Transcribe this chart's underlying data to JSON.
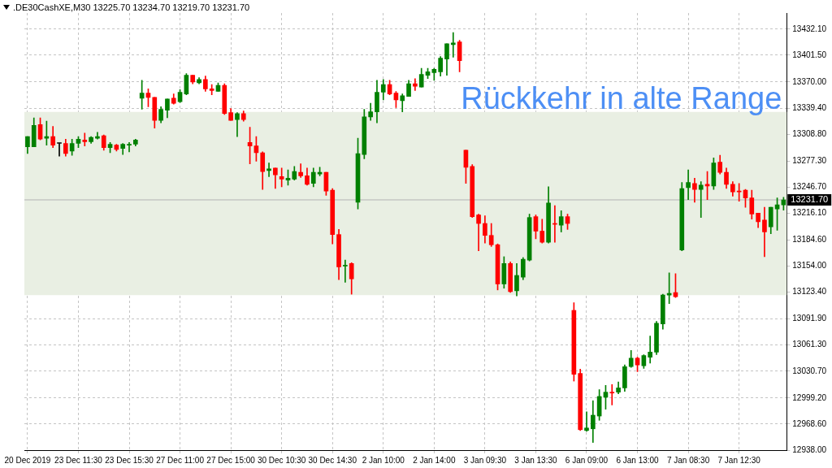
{
  "chart_data": {
    "type": "candlestick",
    "title": ".DE30CashXE,M30  13225.70 13234.70 13219.70 13231.70",
    "categories": [
      "20 Dec 2019",
      null,
      null,
      null,
      null,
      null,
      null,
      null,
      "23 Dec 11:30",
      null,
      null,
      null,
      null,
      null,
      null,
      null,
      "23 Dec 15:30",
      null,
      null,
      null,
      null,
      null,
      null,
      null,
      "27 Dec 11:00",
      null,
      null,
      null,
      null,
      null,
      null,
      null,
      "27 Dec 15:00",
      null,
      null,
      null,
      null,
      null,
      null,
      null,
      "30 Dec 10:30",
      null,
      null,
      null,
      null,
      null,
      null,
      null,
      "30 Dec 14:30",
      null,
      null,
      null,
      null,
      null,
      null,
      null,
      "2 Jan 10:00",
      null,
      null,
      null,
      null,
      null,
      null,
      null,
      "2 Jan 14:00",
      null,
      null,
      null,
      null,
      null,
      null,
      null,
      "3 Jan 09:30",
      null,
      null,
      null,
      null,
      null,
      null,
      null,
      "3 Jan 13:30",
      null,
      null,
      null,
      null,
      null,
      null,
      null,
      "6 Jan 09:00",
      null,
      null,
      null,
      null,
      null,
      null,
      null,
      "6 Jan 13:00",
      null,
      null,
      null,
      null,
      null,
      null,
      null,
      "7 Jan 08:30",
      null,
      null,
      null,
      null,
      null,
      null,
      null,
      "7 Jan 12:30",
      null,
      null,
      null,
      null,
      null,
      null,
      null
    ],
    "ohlc": [
      [
        13294,
        13306,
        13286,
        13306
      ],
      [
        13294,
        13328,
        13294,
        13319
      ],
      [
        13320,
        13328,
        13302,
        13303
      ],
      [
        13304,
        13324,
        13296,
        13306
      ],
      [
        13306,
        13318,
        13293,
        13296
      ],
      [
        13298,
        13298,
        13283,
        13298
      ],
      [
        13298,
        13303,
        13283,
        13286
      ],
      [
        13289,
        13303,
        13284,
        13298
      ],
      [
        13298,
        13306,
        13293,
        13303
      ],
      [
        13302,
        13310,
        13295,
        13300
      ],
      [
        13300,
        13306,
        13298,
        13305
      ],
      [
        13304,
        13311,
        13303,
        13306
      ],
      [
        13307,
        13308,
        13290,
        13293
      ],
      [
        13293,
        13299,
        13287,
        13297
      ],
      [
        13296,
        13297,
        13289,
        13291
      ],
      [
        13292,
        13298,
        13285,
        13297
      ],
      [
        13296,
        13299,
        13288,
        13297
      ],
      [
        13297,
        13303,
        13295,
        13302
      ],
      [
        13351,
        13372,
        13338,
        13357
      ],
      [
        13357,
        13362,
        13341,
        13352
      ],
      [
        13352,
        13352,
        13316,
        13325
      ],
      [
        13325,
        13341,
        13322,
        13338
      ],
      [
        13337,
        13350,
        13328,
        13350
      ],
      [
        13351,
        13356,
        13344,
        13345
      ],
      [
        13347,
        13361,
        13346,
        13358
      ],
      [
        13356,
        13380,
        13355,
        13378
      ],
      [
        13378,
        13378,
        13368,
        13370
      ],
      [
        13369,
        13375,
        13368,
        13373
      ],
      [
        13373,
        13377,
        13359,
        13362
      ],
      [
        13362,
        13367,
        13355,
        13360
      ],
      [
        13359,
        13369,
        13359,
        13366
      ],
      [
        13366,
        13368,
        13332,
        13333
      ],
      [
        13334,
        13339,
        13325,
        13325
      ],
      [
        13326,
        13334,
        13306,
        13333
      ],
      [
        13333,
        13336,
        13324,
        13326
      ],
      [
        13299,
        13317,
        13274,
        13295
      ],
      [
        13295,
        13306,
        13277,
        13287
      ],
      [
        13287,
        13288,
        13244,
        13265
      ],
      [
        13266,
        13275,
        13259,
        13268
      ],
      [
        13269,
        13269,
        13245,
        13261
      ],
      [
        13259,
        13269,
        13247,
        13256
      ],
      [
        13255,
        13267,
        13249,
        13257
      ],
      [
        13256,
        13271,
        13255,
        13265
      ],
      [
        13264,
        13274,
        13258,
        13260
      ],
      [
        13260,
        13269,
        13249,
        13250
      ],
      [
        13251,
        13269,
        13247,
        13264
      ],
      [
        13262,
        13270,
        13260,
        13264
      ],
      [
        13264,
        13264,
        13237,
        13242
      ],
      [
        13243,
        13245,
        13180,
        13191
      ],
      [
        13191,
        13197,
        13138,
        13153
      ],
      [
        13154,
        13161,
        13135,
        13155
      ],
      [
        13157,
        13158,
        13121,
        13139
      ],
      [
        13229,
        13304,
        13221,
        13286
      ],
      [
        13285,
        13338,
        13280,
        13329
      ],
      [
        13329,
        13345,
        13325,
        13335
      ],
      [
        13335,
        13372,
        13322,
        13358
      ],
      [
        13358,
        13373,
        13349,
        13367
      ],
      [
        13367,
        13372,
        13355,
        13356
      ],
      [
        13357,
        13359,
        13340,
        13349
      ],
      [
        13348,
        13356,
        13335,
        13354
      ],
      [
        13353,
        13372,
        13353,
        13368
      ],
      [
        13368,
        13374,
        13360,
        13365
      ],
      [
        13364,
        13386,
        13364,
        13379
      ],
      [
        13378,
        13386,
        13374,
        13382
      ],
      [
        13381,
        13386,
        13372,
        13385
      ],
      [
        13382,
        13400,
        13377,
        13398
      ],
      [
        13397,
        13415,
        13378,
        13415
      ],
      [
        13414,
        13428,
        13399,
        13416
      ],
      [
        13417,
        13419,
        13382,
        13395
      ],
      [
        13290,
        13290,
        13251,
        13270
      ],
      [
        13271,
        13273,
        13211,
        13212
      ],
      [
        13214,
        13215,
        13172,
        13204
      ],
      [
        13204,
        13213,
        13181,
        13190
      ],
      [
        13190,
        13204,
        13177,
        13179
      ],
      [
        13179,
        13180,
        13126,
        13133
      ],
      [
        13133,
        13165,
        13128,
        13157
      ],
      [
        13157,
        13159,
        13123,
        13124
      ],
      [
        13125,
        13157,
        13119,
        13143
      ],
      [
        13141,
        13164,
        13138,
        13162
      ],
      [
        13161,
        13215,
        13160,
        13211
      ],
      [
        13212,
        13214,
        13186,
        13195
      ],
      [
        13195,
        13209,
        13181,
        13182
      ],
      [
        13182,
        13247,
        13181,
        13228
      ],
      [
        13204,
        13225,
        13182,
        13203
      ],
      [
        13202,
        13219,
        13194,
        13212
      ],
      [
        13212,
        13215,
        13197,
        13204
      ],
      [
        13102,
        13111,
        13019,
        13027
      ],
      [
        13028,
        13033,
        12961,
        12962
      ],
      [
        12961,
        12983,
        12960,
        12964
      ],
      [
        12963,
        12996,
        12947,
        12979
      ],
      [
        12978,
        13009,
        12973,
        13001
      ],
      [
        13000,
        13014,
        12986,
        13006
      ],
      [
        13006,
        13015,
        12991,
        13005
      ],
      [
        13006,
        13018,
        13004,
        13011
      ],
      [
        13011,
        13038,
        13007,
        13036
      ],
      [
        13036,
        13055,
        13035,
        13046
      ],
      [
        13046,
        13047,
        13030,
        13038
      ],
      [
        13037,
        13050,
        13034,
        13049
      ],
      [
        13047,
        13072,
        13040,
        13053
      ],
      [
        13053,
        13089,
        13050,
        13087
      ],
      [
        13086,
        13121,
        13080,
        13120
      ],
      [
        13120,
        13146,
        13110,
        13122
      ],
      [
        13123,
        13145,
        13117,
        13118
      ],
      [
        13173,
        13252,
        13172,
        13245
      ],
      [
        13246,
        13267,
        13232,
        13252
      ],
      [
        13251,
        13257,
        13229,
        13244
      ],
      [
        13244,
        13253,
        13211,
        13249
      ],
      [
        13250,
        13265,
        13232,
        13248
      ],
      [
        13248,
        13281,
        13244,
        13275
      ],
      [
        13276,
        13284,
        13262,
        13264
      ],
      [
        13264,
        13269,
        13245,
        13250
      ],
      [
        13250,
        13253,
        13236,
        13241
      ],
      [
        13242,
        13251,
        13230,
        13241
      ],
      [
        13243,
        13244,
        13223,
        13234
      ],
      [
        13234,
        13243,
        13209,
        13215
      ],
      [
        13216,
        13216,
        13199,
        13206
      ],
      [
        13208,
        13223,
        13165,
        13194
      ],
      [
        13200,
        13223,
        13192,
        13223
      ],
      [
        13221,
        13234,
        13196,
        13226
      ],
      [
        13225.7,
        13234.7,
        13219.7,
        13231.7
      ]
    ],
    "colors": [
      "#008000",
      "#008000",
      "#ff0000",
      "#008000",
      "#ff0000",
      "#000000",
      "#ff0000",
      "#008000",
      "#008000",
      "#ff0000",
      "#008000",
      "#008000",
      "#ff0000",
      "#008000",
      "#ff0000",
      "#008000",
      "#008000",
      "#008000",
      "#008000",
      "#ff0000",
      "#ff0000",
      "#008000",
      "#008000",
      "#ff0000",
      "#008000",
      "#008000",
      "#ff0000",
      "#008000",
      "#ff0000",
      "#ff0000",
      "#008000",
      "#ff0000",
      "#ff0000",
      "#008000",
      "#ff0000",
      "#ff0000",
      "#ff0000",
      "#ff0000",
      "#008000",
      "#ff0000",
      "#ff0000",
      "#008000",
      "#008000",
      "#ff0000",
      "#ff0000",
      "#008000",
      "#008000",
      "#ff0000",
      "#ff0000",
      "#ff0000",
      "#008000",
      "#ff0000",
      "#008000",
      "#008000",
      "#008000",
      "#008000",
      "#008000",
      "#ff0000",
      "#ff0000",
      "#008000",
      "#008000",
      "#ff0000",
      "#008000",
      "#008000",
      "#008000",
      "#008000",
      "#008000",
      "#008000",
      "#ff0000",
      "#ff0000",
      "#ff0000",
      "#ff0000",
      "#ff0000",
      "#ff0000",
      "#ff0000",
      "#008000",
      "#ff0000",
      "#008000",
      "#008000",
      "#008000",
      "#ff0000",
      "#ff0000",
      "#008000",
      "#ff0000",
      "#008000",
      "#ff0000",
      "#ff0000",
      "#ff0000",
      "#008000",
      "#008000",
      "#008000",
      "#008000",
      "#ff0000",
      "#008000",
      "#008000",
      "#008000",
      "#ff0000",
      "#008000",
      "#008000",
      "#008000",
      "#008000",
      "#008000",
      "#ff0000",
      "#008000",
      "#008000",
      "#ff0000",
      "#008000",
      "#ff0000",
      "#008000",
      "#ff0000",
      "#ff0000",
      "#ff0000",
      "#ff0000",
      "#ff0000",
      "#ff0000",
      "#ff0000",
      "#ff0000",
      "#008000",
      "#008000",
      "#008000"
    ],
    "ylim": [
      12938,
      13451
    ],
    "yticks": [
      {
        "value": 12938,
        "label": "12938.00"
      },
      {
        "value": 12968.6,
        "label": "12968.60"
      },
      {
        "value": 12999.2,
        "label": "12999.20"
      },
      {
        "value": 13030.7,
        "label": "13030.70"
      },
      {
        "value": 13061.3,
        "label": "13061.30"
      },
      {
        "value": 13091.9,
        "label": "13091.90"
      },
      {
        "value": 13123.4,
        "label": "13123.40"
      },
      {
        "value": 13154,
        "label": "13154.00"
      },
      {
        "value": 13184.6,
        "label": "13184.60"
      },
      {
        "value": 13216.1,
        "label": "13216.10"
      },
      {
        "value": 13246.7,
        "label": "13246.70"
      },
      {
        "value": 13277.3,
        "label": "13277.30"
      },
      {
        "value": 13308.8,
        "label": "13308.80"
      },
      {
        "value": 13339.4,
        "label": "13339.40"
      },
      {
        "value": 13370,
        "label": "13370.00"
      },
      {
        "value": 13401.5,
        "label": "13401.50"
      },
      {
        "value": 13432.1,
        "label": "13432.10"
      }
    ],
    "grid": true,
    "bands": [
      {
        "axis": "y",
        "from": 13120,
        "to": 13335,
        "color": "#e9efe3"
      }
    ],
    "ref_lines": [
      {
        "axis": "y",
        "value": 13231.7,
        "label": "13231.70",
        "color": "#b4b4b4"
      }
    ],
    "annotations": [
      "Rückkehr in alte Range"
    ]
  }
}
